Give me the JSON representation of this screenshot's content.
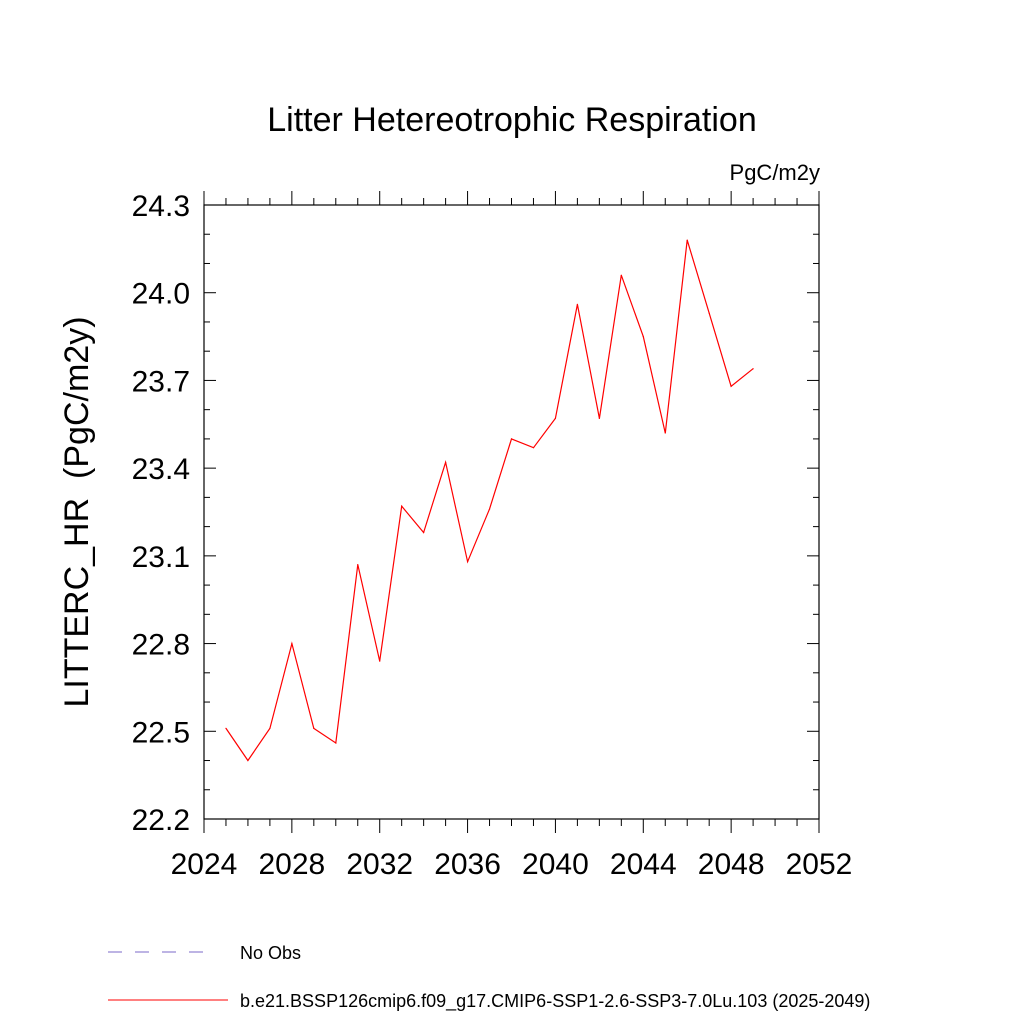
{
  "chart_data": {
    "type": "line",
    "title": "Litter Hetereotrophic Respiration",
    "units": "PgC/m2y",
    "ylabel": "LITTERC_HR  (PgC/m2y)",
    "xlabel": "",
    "xlim": [
      2024,
      2052
    ],
    "ylim": [
      22.2,
      24.3
    ],
    "xticks": [
      2024,
      2028,
      2032,
      2036,
      2040,
      2044,
      2048,
      2052
    ],
    "xtick_labels": [
      "2024",
      "2028",
      "2032",
      "2036",
      "2040",
      "2044",
      "2048",
      "2052"
    ],
    "yticks": [
      22.2,
      22.5,
      22.8,
      23.1,
      23.4,
      23.7,
      24.0,
      24.3
    ],
    "ytick_labels": [
      "22.2",
      "22.5",
      "22.8",
      "23.1",
      "23.4",
      "23.7",
      "24.0",
      "24.3"
    ],
    "grid": false,
    "legend_position": "bottom",
    "series": [
      {
        "name": "b.e21.BSSP126cmip6.f09_g17.CMIP6-SSP1-2.6-SSP3-7.0Lu.103 (2025-2049)",
        "color": "#ff0000",
        "style": "solid",
        "x": [
          2025,
          2026,
          2027,
          2028,
          2029,
          2030,
          2031,
          2032,
          2033,
          2034,
          2035,
          2036,
          2037,
          2038,
          2039,
          2040,
          2041,
          2042,
          2043,
          2044,
          2045,
          2046,
          2047,
          2048,
          2049
        ],
        "values": [
          22.51,
          22.4,
          22.51,
          22.8,
          22.51,
          22.46,
          23.07,
          22.74,
          23.27,
          23.18,
          23.42,
          23.08,
          23.26,
          23.5,
          23.47,
          23.57,
          23.96,
          23.57,
          24.06,
          23.85,
          23.52,
          24.18,
          23.93,
          23.68,
          23.74
        ]
      }
    ],
    "legend": [
      {
        "label": "No Obs",
        "color": "#7b68c8",
        "style": "dashed"
      },
      {
        "label": "b.e21.BSSP126cmip6.f09_g17.CMIP6-SSP1-2.6-SSP3-7.0Lu.103 (2025-2049)",
        "color": "#ff0000",
        "style": "solid"
      }
    ]
  }
}
